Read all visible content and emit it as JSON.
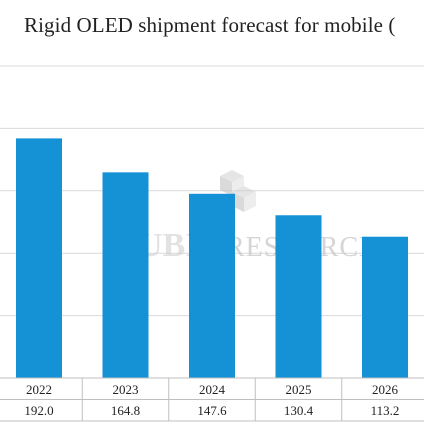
{
  "title": "Rigid OLED shipment forecast for mobile (",
  "watermark": {
    "text": "RESEARCH",
    "logo_text": "UBI"
  },
  "colors": {
    "bar": "#1591d6",
    "grid": "#d9d9d9",
    "text": "#222222",
    "watermark": "#c8c8c8"
  },
  "chart_data": {
    "type": "bar",
    "title": "Rigid OLED shipment forecast for mobile (",
    "categories": [
      "2022",
      "2023",
      "2024",
      "2025",
      "2026"
    ],
    "values": [
      192.0,
      164.8,
      147.6,
      130.4,
      113.2
    ],
    "value_labels": [
      "192.0",
      "164.8",
      "147.6",
      "130.4",
      "113.2"
    ],
    "ylim": [
      0,
      250
    ],
    "grid": true,
    "data_table": true
  }
}
